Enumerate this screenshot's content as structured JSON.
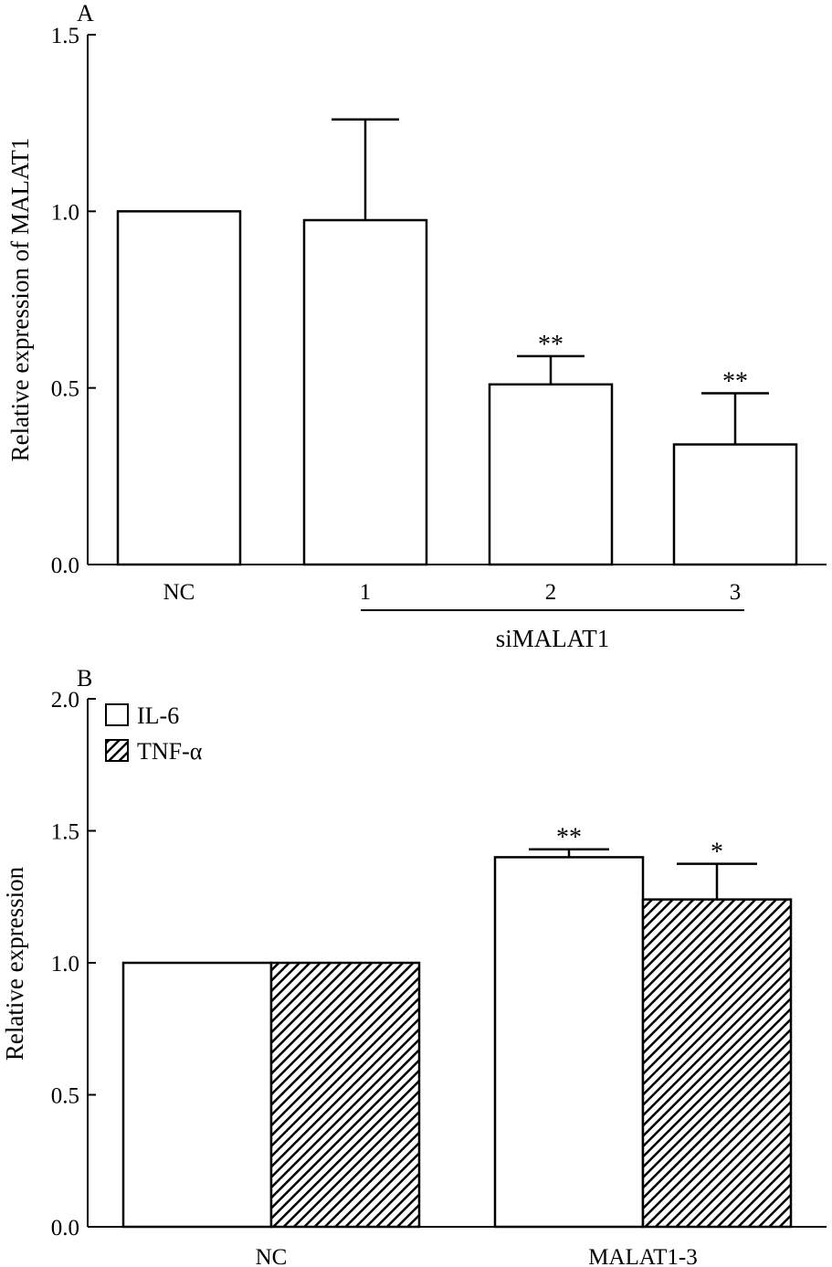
{
  "chart_data": [
    {
      "type": "bar",
      "panel": "A",
      "ylabel": "Relative expression of MALAT1",
      "xlabel": "",
      "group_label": "siMALAT1",
      "ylim": [
        0,
        1.5
      ],
      "yticks": [
        "0.0",
        "0.5",
        "1.0",
        "1.5"
      ],
      "ytick_values": [
        0,
        0.5,
        1.0,
        1.5
      ],
      "categories": [
        "NC",
        "1",
        "2",
        "3"
      ],
      "values": [
        1.0,
        0.975,
        0.51,
        0.34
      ],
      "errors": [
        0,
        0.285,
        0.08,
        0.145
      ],
      "significance": [
        "",
        "",
        "**",
        "**"
      ],
      "colors": {
        "bar_fill": "#ffffff",
        "stroke": "#000000"
      }
    },
    {
      "type": "bar",
      "panel": "B",
      "ylabel": "Relative expression",
      "xlabel": "",
      "ylim": [
        0,
        2.0
      ],
      "yticks": [
        "0.0",
        "0.5",
        "1.0",
        "1.5",
        "2.0"
      ],
      "ytick_values": [
        0,
        0.5,
        1.0,
        1.5,
        2.0
      ],
      "categories": [
        "NC",
        "MALAT1-3"
      ],
      "legend_position": "top-left",
      "series": [
        {
          "name": "IL-6",
          "pattern": "open",
          "values": [
            1.0,
            1.4
          ],
          "errors": [
            0,
            0.03
          ],
          "significance": [
            "",
            "**"
          ]
        },
        {
          "name": "TNF-α",
          "pattern": "hatched",
          "values": [
            1.0,
            1.24
          ],
          "errors": [
            0,
            0.135
          ],
          "significance": [
            "",
            "*"
          ]
        }
      ],
      "colors": {
        "bar_fill": "#ffffff",
        "hatch": "#000000",
        "stroke": "#000000"
      }
    }
  ]
}
